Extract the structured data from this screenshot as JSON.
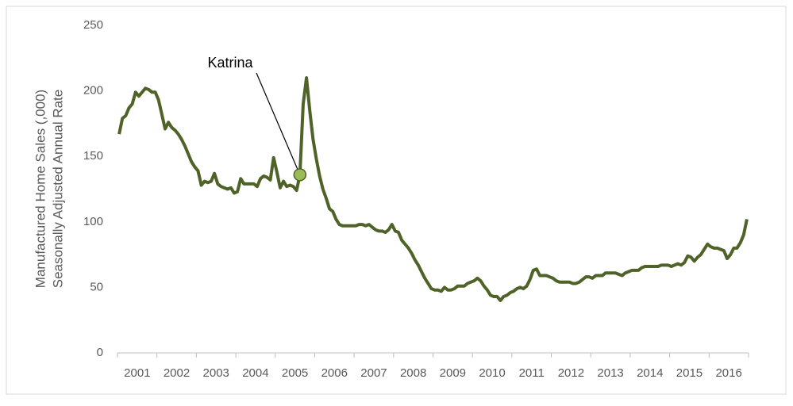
{
  "chart_data": {
    "type": "line",
    "y_label": [
      "Manufactured Home Sales (,000)",
      "Seasonally Adjusted Annual Rate"
    ],
    "categories": [
      "2001",
      null,
      null,
      null,
      null,
      null,
      null,
      null,
      null,
      null,
      null,
      null,
      "2002",
      null,
      null,
      null,
      null,
      null,
      null,
      null,
      null,
      null,
      null,
      null,
      "2003",
      null,
      null,
      null,
      null,
      null,
      null,
      null,
      null,
      null,
      null,
      null,
      "2004",
      null,
      null,
      null,
      null,
      null,
      null,
      null,
      null,
      null,
      null,
      null,
      "2005",
      null,
      null,
      null,
      null,
      null,
      null,
      null,
      null,
      null,
      null,
      null,
      "2006",
      null,
      null,
      null,
      null,
      null,
      null,
      null,
      null,
      null,
      null,
      null,
      "2007",
      null,
      null,
      null,
      null,
      null,
      null,
      null,
      null,
      null,
      null,
      null,
      "2008",
      null,
      null,
      null,
      null,
      null,
      null,
      null,
      null,
      null,
      null,
      null,
      "2009",
      null,
      null,
      null,
      null,
      null,
      null,
      null,
      null,
      null,
      null,
      null,
      "2010",
      null,
      null,
      null,
      null,
      null,
      null,
      null,
      null,
      null,
      null,
      null,
      "2011",
      null,
      null,
      null,
      null,
      null,
      null,
      null,
      null,
      null,
      null,
      null,
      "2012",
      null,
      null,
      null,
      null,
      null,
      null,
      null,
      null,
      null,
      null,
      null,
      "2013",
      null,
      null,
      null,
      null,
      null,
      null,
      null,
      null,
      null,
      null,
      null,
      "2014",
      null,
      null,
      null,
      null,
      null,
      null,
      null,
      null,
      null,
      null,
      null,
      "2015",
      null,
      null,
      null,
      null,
      null,
      null,
      null,
      null,
      null,
      null,
      null,
      "2016",
      null,
      null,
      null,
      null,
      null,
      null,
      null,
      null,
      null,
      null,
      null
    ],
    "values": [
      167,
      179,
      181,
      187,
      190,
      199,
      196,
      199,
      202,
      201,
      199,
      199,
      193,
      182,
      171,
      176,
      172,
      170,
      167,
      163,
      158,
      152,
      146,
      142,
      139,
      128,
      131,
      130,
      131,
      137,
      129,
      127,
      126,
      125,
      126,
      122,
      123,
      133,
      129,
      129,
      129,
      129,
      127,
      133,
      135,
      134,
      132,
      149,
      138,
      126,
      131,
      127,
      128,
      127,
      124,
      136,
      190,
      210,
      185,
      163,
      148,
      135,
      125,
      118,
      110,
      108,
      102,
      98,
      97,
      97,
      97,
      97,
      97,
      98,
      98,
      97,
      98,
      96,
      94,
      93,
      93,
      92,
      94,
      98,
      93,
      92,
      86,
      83,
      80,
      76,
      71,
      67,
      62,
      57,
      53,
      49,
      48,
      48,
      47,
      50,
      48,
      48,
      49,
      51,
      51,
      51,
      53,
      54,
      55,
      57,
      55,
      51,
      48,
      44,
      43,
      43,
      40,
      43,
      44,
      46,
      47,
      49,
      50,
      49,
      51,
      56,
      63,
      64,
      59,
      59,
      59,
      58,
      57,
      55,
      54,
      54,
      54,
      54,
      53,
      53,
      54,
      56,
      58,
      58,
      57,
      59,
      59,
      59,
      61,
      61,
      61,
      61,
      60,
      59,
      61,
      62,
      63,
      63,
      63,
      65,
      66,
      66,
      66,
      66,
      66,
      67,
      67,
      67,
      66,
      67,
      68,
      67,
      69,
      74,
      73,
      70,
      73,
      75,
      79,
      83,
      81,
      80,
      80,
      79,
      78,
      72,
      75,
      80,
      80,
      84,
      90,
      102
    ],
    "color": "#4f6228",
    "marker_color": "#9bbb59",
    "annotations": [
      {
        "text": "Katrina",
        "index": 55
      }
    ],
    "ylim": [
      0,
      250
    ],
    "yticks": [
      0,
      50,
      100,
      150,
      200,
      250
    ],
    "grid": false
  }
}
